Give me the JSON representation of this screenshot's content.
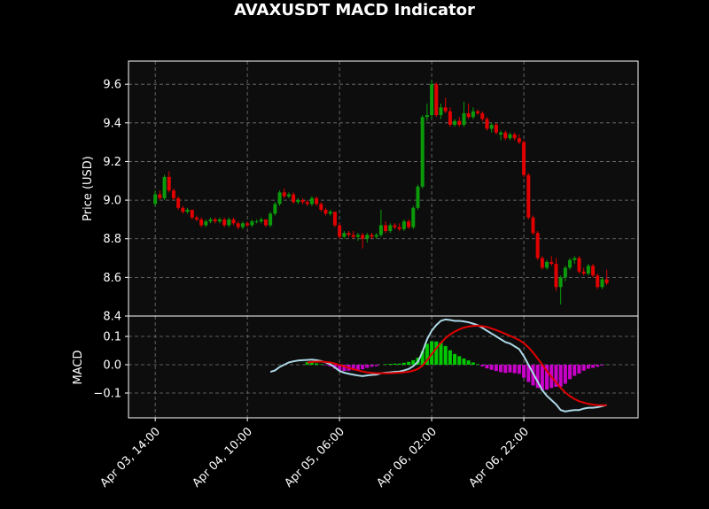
{
  "chart_data": [
    {
      "type": "candlestick",
      "title": "AVAXUSDT MACD Indicator",
      "ylabel": "Price (USD)",
      "x": [
        "Apr 03, 14:00",
        "Apr 03, 15:00",
        "Apr 03, 16:00",
        "Apr 03, 17:00",
        "Apr 03, 18:00",
        "Apr 03, 19:00",
        "Apr 03, 20:00",
        "Apr 03, 21:00",
        "Apr 03, 22:00",
        "Apr 03, 23:00",
        "Apr 04, 00:00",
        "Apr 04, 01:00",
        "Apr 04, 02:00",
        "Apr 04, 03:00",
        "Apr 04, 04:00",
        "Apr 04, 05:00",
        "Apr 04, 06:00",
        "Apr 04, 07:00",
        "Apr 04, 08:00",
        "Apr 04, 09:00",
        "Apr 04, 10:00",
        "Apr 04, 11:00",
        "Apr 04, 12:00",
        "Apr 04, 13:00",
        "Apr 04, 14:00",
        "Apr 04, 15:00",
        "Apr 04, 16:00",
        "Apr 04, 17:00",
        "Apr 04, 18:00",
        "Apr 04, 19:00",
        "Apr 04, 20:00",
        "Apr 04, 21:00",
        "Apr 04, 22:00",
        "Apr 04, 23:00",
        "Apr 05, 00:00",
        "Apr 05, 01:00",
        "Apr 05, 02:00",
        "Apr 05, 03:00",
        "Apr 05, 04:00",
        "Apr 05, 05:00",
        "Apr 05, 06:00",
        "Apr 05, 07:00",
        "Apr 05, 08:00",
        "Apr 05, 09:00",
        "Apr 05, 10:00",
        "Apr 05, 11:00",
        "Apr 05, 12:00",
        "Apr 05, 13:00",
        "Apr 05, 14:00",
        "Apr 05, 15:00",
        "Apr 05, 16:00",
        "Apr 05, 17:00",
        "Apr 05, 18:00",
        "Apr 05, 19:00",
        "Apr 05, 20:00",
        "Apr 05, 21:00",
        "Apr 05, 22:00",
        "Apr 05, 23:00",
        "Apr 06, 00:00",
        "Apr 06, 01:00",
        "Apr 06, 02:00",
        "Apr 06, 03:00",
        "Apr 06, 04:00",
        "Apr 06, 05:00",
        "Apr 06, 06:00",
        "Apr 06, 07:00",
        "Apr 06, 08:00",
        "Apr 06, 09:00",
        "Apr 06, 10:00",
        "Apr 06, 11:00",
        "Apr 06, 12:00",
        "Apr 06, 13:00",
        "Apr 06, 14:00",
        "Apr 06, 15:00",
        "Apr 06, 16:00",
        "Apr 06, 17:00",
        "Apr 06, 18:00",
        "Apr 06, 19:00",
        "Apr 06, 20:00",
        "Apr 06, 21:00",
        "Apr 06, 22:00",
        "Apr 06, 23:00",
        "Apr 07, 00:00",
        "Apr 07, 01:00",
        "Apr 07, 02:00",
        "Apr 07, 03:00",
        "Apr 07, 04:00",
        "Apr 07, 05:00",
        "Apr 07, 06:00",
        "Apr 07, 07:00",
        "Apr 07, 08:00",
        "Apr 07, 09:00",
        "Apr 07, 10:00",
        "Apr 07, 11:00",
        "Apr 07, 12:00",
        "Apr 07, 13:00",
        "Apr 07, 14:00",
        "Apr 07, 15:00",
        "Apr 07, 16:00"
      ],
      "open": [
        8.98,
        9.03,
        9.01,
        9.12,
        9.05,
        9.01,
        8.96,
        8.94,
        8.95,
        8.91,
        8.9,
        8.87,
        8.89,
        8.9,
        8.89,
        8.9,
        8.87,
        8.9,
        8.88,
        8.86,
        8.88,
        8.87,
        8.89,
        8.89,
        8.9,
        8.87,
        8.93,
        8.98,
        9.04,
        9.02,
        9.03,
        8.99,
        9.0,
        8.99,
        8.98,
        9.01,
        8.98,
        8.95,
        8.93,
        8.94,
        8.87,
        8.81,
        8.83,
        8.82,
        8.81,
        8.82,
        8.8,
        8.82,
        8.81,
        8.82,
        8.87,
        8.84,
        8.87,
        8.86,
        8.85,
        8.89,
        8.86,
        8.96,
        9.07,
        9.43,
        9.44,
        9.6,
        9.44,
        9.48,
        9.46,
        9.39,
        9.41,
        9.39,
        9.45,
        9.43,
        9.46,
        9.45,
        9.42,
        9.37,
        9.39,
        9.34,
        9.35,
        9.32,
        9.34,
        9.32,
        9.3,
        9.13,
        8.91,
        8.83,
        8.7,
        8.65,
        8.68,
        8.67,
        8.55,
        8.6,
        8.65,
        8.69,
        8.7,
        8.63,
        8.62,
        8.66,
        8.61,
        8.55,
        8.59
      ],
      "high": [
        9.05,
        9.05,
        9.13,
        9.15,
        9.06,
        9.02,
        8.97,
        8.96,
        8.95,
        8.92,
        8.91,
        8.9,
        8.91,
        8.91,
        8.91,
        8.91,
        8.91,
        8.91,
        8.89,
        8.89,
        8.89,
        8.9,
        8.9,
        8.91,
        8.9,
        8.94,
        8.99,
        9.05,
        9.06,
        9.04,
        9.04,
        9.01,
        9.01,
        9.0,
        9.02,
        9.02,
        8.99,
        8.96,
        8.95,
        8.94,
        8.88,
        8.84,
        8.84,
        8.84,
        8.83,
        8.83,
        8.83,
        8.83,
        8.83,
        8.95,
        8.89,
        8.88,
        8.88,
        8.88,
        8.9,
        8.9,
        8.97,
        9.08,
        9.44,
        9.5,
        9.62,
        9.61,
        9.5,
        9.53,
        9.48,
        9.42,
        9.43,
        9.51,
        9.5,
        9.48,
        9.47,
        9.46,
        9.43,
        9.4,
        9.4,
        9.36,
        9.36,
        9.35,
        9.35,
        9.34,
        9.31,
        9.14,
        8.92,
        8.84,
        8.71,
        8.69,
        8.71,
        8.7,
        8.61,
        8.66,
        8.7,
        8.71,
        8.71,
        8.65,
        8.67,
        8.67,
        8.62,
        8.6,
        8.64
      ],
      "low": [
        8.97,
        9.0,
        9.0,
        9.04,
        9.0,
        8.95,
        8.93,
        8.93,
        8.9,
        8.89,
        8.86,
        8.86,
        8.88,
        8.88,
        8.88,
        8.86,
        8.86,
        8.87,
        8.85,
        8.85,
        8.86,
        8.86,
        8.88,
        8.88,
        8.86,
        8.86,
        8.92,
        8.97,
        9.01,
        9.01,
        8.98,
        8.98,
        8.98,
        8.97,
        8.97,
        8.97,
        8.94,
        8.92,
        8.92,
        8.86,
        8.8,
        8.8,
        8.81,
        8.8,
        8.79,
        8.75,
        8.78,
        8.8,
        8.8,
        8.81,
        8.83,
        8.83,
        8.85,
        8.84,
        8.84,
        8.85,
        8.85,
        8.95,
        9.06,
        9.41,
        9.42,
        9.43,
        9.42,
        9.45,
        9.38,
        9.38,
        9.38,
        9.38,
        9.42,
        9.42,
        9.44,
        9.41,
        9.36,
        9.35,
        9.34,
        9.31,
        9.31,
        9.31,
        9.31,
        9.29,
        9.12,
        8.9,
        8.82,
        8.69,
        8.64,
        8.64,
        8.66,
        8.53,
        8.46,
        8.58,
        8.64,
        8.67,
        8.62,
        8.61,
        8.61,
        8.6,
        8.54,
        8.54,
        8.56
      ],
      "close": [
        9.03,
        9.01,
        9.12,
        9.05,
        9.01,
        8.96,
        8.94,
        8.95,
        8.91,
        8.9,
        8.87,
        8.89,
        8.9,
        8.89,
        8.9,
        8.87,
        8.9,
        8.88,
        8.86,
        8.88,
        8.87,
        8.89,
        8.89,
        8.9,
        8.87,
        8.93,
        8.98,
        9.04,
        9.02,
        9.03,
        8.99,
        9.0,
        8.99,
        8.98,
        9.01,
        8.98,
        8.95,
        8.93,
        8.94,
        8.87,
        8.81,
        8.83,
        8.82,
        8.81,
        8.82,
        8.8,
        8.82,
        8.81,
        8.82,
        8.87,
        8.84,
        8.87,
        8.86,
        8.85,
        8.89,
        8.86,
        8.96,
        9.07,
        9.43,
        9.44,
        9.6,
        9.44,
        9.48,
        9.46,
        9.39,
        9.41,
        9.39,
        9.45,
        9.43,
        9.46,
        9.45,
        9.42,
        9.37,
        9.39,
        9.35,
        9.35,
        9.32,
        9.34,
        9.32,
        9.3,
        9.13,
        8.91,
        8.83,
        8.7,
        8.65,
        8.68,
        8.67,
        8.55,
        8.6,
        8.65,
        8.69,
        8.7,
        8.63,
        8.62,
        8.66,
        8.61,
        8.55,
        8.59,
        8.57
      ],
      "up_color": "#0a9a0a",
      "down_color": "#e00000",
      "xlim": [
        -5.8,
        104.8
      ],
      "ylim": [
        8.4,
        9.72
      ],
      "yticks": [
        8.4,
        8.6,
        8.8,
        {
          "value": 9,
          "label": "9.0"
        },
        9.2,
        9.4,
        9.6
      ],
      "grid": true
    },
    {
      "type": "macd",
      "ylabel": "MACD",
      "series": [
        {
          "color": "#add8e6",
          "values": [
            null,
            null,
            null,
            null,
            null,
            null,
            null,
            null,
            null,
            null,
            null,
            null,
            null,
            null,
            null,
            null,
            null,
            null,
            null,
            null,
            null,
            null,
            null,
            null,
            null,
            -0.025,
            -0.02,
            -0.008,
            0,
            0.008,
            0.012,
            0.015,
            0.016,
            0.017,
            0.018,
            0.016,
            0.013,
            0.008,
            0.002,
            -0.01,
            -0.022,
            -0.028,
            -0.032,
            -0.035,
            -0.038,
            -0.04,
            -0.038,
            -0.036,
            -0.035,
            -0.03,
            -0.028,
            -0.027,
            -0.025,
            -0.024,
            -0.02,
            -0.015,
            -0.005,
            0.01,
            0.045,
            0.09,
            0.12,
            0.14,
            0.155,
            0.16,
            0.158,
            0.155,
            0.155,
            0.153,
            0.15,
            0.145,
            0.14,
            0.13,
            0.12,
            0.11,
            0.1,
            0.09,
            0.08,
            0.075,
            0.065,
            0.055,
            0.03,
            0,
            -0.03,
            -0.06,
            -0.09,
            -0.11,
            -0.125,
            -0.14,
            -0.16,
            -0.165,
            -0.162,
            -0.16,
            -0.16,
            -0.155,
            -0.152,
            -0.152,
            -0.15,
            -0.146,
            -0.142
          ]
        },
        {
          "color": "#e00000",
          "values": [
            null,
            null,
            null,
            null,
            null,
            null,
            null,
            null,
            null,
            null,
            null,
            null,
            null,
            null,
            null,
            null,
            null,
            null,
            null,
            null,
            null,
            null,
            null,
            null,
            null,
            null,
            null,
            null,
            null,
            null,
            null,
            null,
            null,
            0.008,
            0.01,
            0.011,
            0.011,
            0.01,
            0.008,
            0.004,
            -0.001,
            -0.006,
            -0.011,
            -0.016,
            -0.02,
            -0.024,
            -0.027,
            -0.029,
            -0.03,
            -0.03,
            -0.03,
            -0.03,
            -0.029,
            -0.028,
            -0.027,
            -0.025,
            -0.021,
            -0.015,
            -0.003,
            0.016,
            0.037,
            0.058,
            0.077,
            0.094,
            0.107,
            0.117,
            0.125,
            0.131,
            0.135,
            0.137,
            0.138,
            0.136,
            0.133,
            0.128,
            0.122,
            0.116,
            0.109,
            0.102,
            0.095,
            0.087,
            0.076,
            0.061,
            0.043,
            0.022,
            0,
            -0.022,
            -0.043,
            -0.062,
            -0.082,
            -0.098,
            -0.111,
            -0.121,
            -0.129,
            -0.134,
            -0.138,
            -0.141,
            -0.143,
            -0.143,
            -0.143
          ]
        }
      ],
      "histogram": {
        "positive_color": "#00c800",
        "negative_color": "#c800c8",
        "values": [
          null,
          null,
          null,
          null,
          null,
          null,
          null,
          null,
          null,
          null,
          null,
          null,
          null,
          null,
          null,
          null,
          null,
          null,
          null,
          null,
          null,
          null,
          null,
          null,
          null,
          null,
          null,
          null,
          null,
          null,
          null,
          null,
          null,
          0.009,
          0.008,
          0.005,
          0.002,
          -0.002,
          -0.006,
          -0.014,
          -0.021,
          -0.022,
          -0.021,
          -0.019,
          -0.018,
          -0.016,
          -0.011,
          -0.007,
          -0.005,
          0,
          0.002,
          0.003,
          0.004,
          0.004,
          0.007,
          0.01,
          0.016,
          0.025,
          0.048,
          0.074,
          0.083,
          0.082,
          0.078,
          0.066,
          0.051,
          0.038,
          0.03,
          0.022,
          0.015,
          0.008,
          0.002,
          -0.006,
          -0.013,
          -0.018,
          -0.022,
          -0.026,
          -0.029,
          -0.027,
          -0.03,
          -0.032,
          -0.046,
          -0.061,
          -0.073,
          -0.082,
          -0.09,
          -0.088,
          -0.082,
          -0.078,
          -0.078,
          -0.067,
          -0.051,
          -0.039,
          -0.031,
          -0.021,
          -0.014,
          -0.011,
          -0.007,
          -0.003,
          0.001
        ]
      },
      "ylim": [
        -0.1875,
        0.172
      ],
      "yticks": [
        {
          "value": -0.1,
          "label": "−0.1"
        },
        {
          "value": 0,
          "label": "0.0"
        },
        0.1
      ],
      "xticks": [
        {
          "value": 0,
          "label": "Apr 03, 14:00"
        },
        {
          "value": 20,
          "label": "Apr 04, 10:00"
        },
        {
          "value": 40,
          "label": "Apr 05, 06:00"
        },
        {
          "value": 60,
          "label": "Apr 06, 02:00"
        },
        {
          "value": 80,
          "label": "Apr 06, 22:00"
        }
      ],
      "grid": true
    }
  ]
}
